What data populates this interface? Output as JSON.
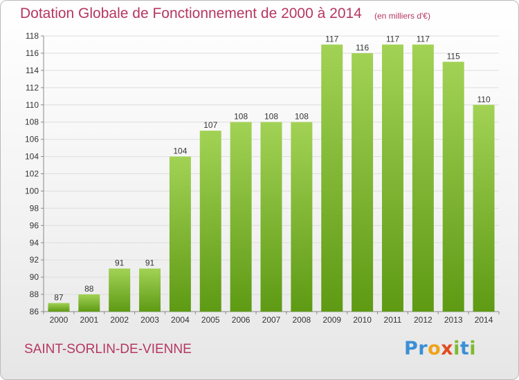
{
  "header": {
    "title": "Dotation Globale de Fonctionnement de 2000 à 2014",
    "subtitle": "(en milliers d'€)"
  },
  "footer": {
    "place": "SAINT-SORLIN-DE-VIENNE",
    "brand_parts": [
      "Pr",
      "o",
      "x",
      "i",
      "t",
      "i"
    ]
  },
  "colors": {
    "bar_top": "#a2d255",
    "bar_bottom": "#5e9a14",
    "title": "#b5365f"
  },
  "chart_data": {
    "type": "bar",
    "title": "Dotation Globale de Fonctionnement de 2000 à 2014",
    "subtitle": "(en milliers d'€)",
    "categories": [
      "2000",
      "2001",
      "2002",
      "2003",
      "2004",
      "2005",
      "2006",
      "2007",
      "2008",
      "2009",
      "2010",
      "2011",
      "2012",
      "2013",
      "2014"
    ],
    "values": [
      87,
      88,
      91,
      91,
      104,
      107,
      108,
      108,
      108,
      117,
      116,
      117,
      117,
      115,
      110
    ],
    "xlabel": "",
    "ylabel": "",
    "ylim": [
      86,
      118
    ],
    "yticks": [
      86,
      88,
      90,
      92,
      94,
      96,
      98,
      100,
      102,
      104,
      106,
      108,
      110,
      112,
      114,
      116,
      118
    ],
    "grid": true,
    "legend": "none"
  }
}
